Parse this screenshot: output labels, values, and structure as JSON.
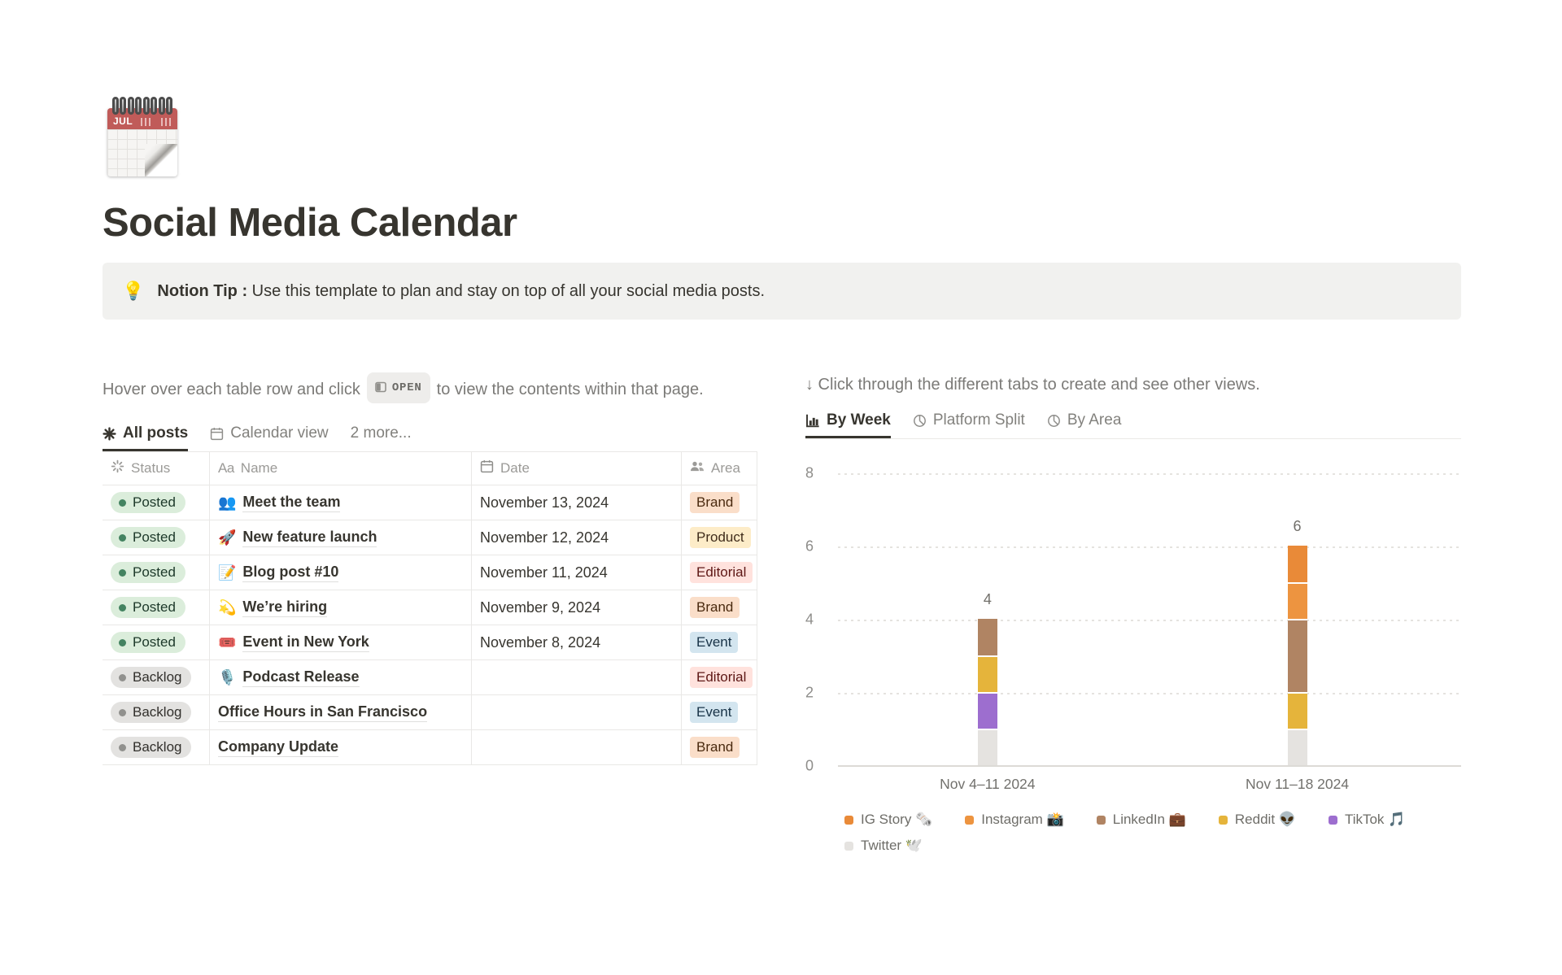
{
  "page": {
    "title": "Social Media Calendar",
    "icon_month": "JUL"
  },
  "callout": {
    "emoji": "💡",
    "bold": "Notion Tip :",
    "text": " Use this template to plan and stay on top of all your social media posts."
  },
  "left": {
    "instr_before": "Hover over each table row and click",
    "open_label": "OPEN",
    "instr_after": "to view the contents within that page.",
    "tabs": [
      {
        "label": "All posts",
        "icon": "asterisk-icon",
        "active": true
      },
      {
        "label": "Calendar view",
        "icon": "calendar-icon",
        "active": false
      },
      {
        "label": "2 more...",
        "icon": "",
        "active": false
      }
    ]
  },
  "table": {
    "headers": [
      {
        "label": "Status",
        "icon": "status-spinner-icon"
      },
      {
        "label": "Name",
        "icon": "aa-icon"
      },
      {
        "label": "Date",
        "icon": "calendar-icon"
      },
      {
        "label": "Area",
        "icon": "people-icon"
      }
    ],
    "rows": [
      {
        "status": "Posted",
        "icon": "👥",
        "name": "Meet the team",
        "date": "November 13, 2024",
        "area": "Brand"
      },
      {
        "status": "Posted",
        "icon": "🚀",
        "name": "New feature launch",
        "date": "November 12, 2024",
        "area": "Product"
      },
      {
        "status": "Posted",
        "icon": "📝",
        "name": "Blog post #10",
        "date": "November 11, 2024",
        "area": "Editorial"
      },
      {
        "status": "Posted",
        "icon": "💫",
        "name": "We’re hiring",
        "date": "November 9, 2024",
        "area": "Brand"
      },
      {
        "status": "Posted",
        "icon": "🎟️",
        "name": "Event in New York",
        "date": "November 8, 2024",
        "area": "Event"
      },
      {
        "status": "Backlog",
        "icon": "🎙️",
        "name": "Podcast Release",
        "date": "",
        "area": "Editorial"
      },
      {
        "status": "Backlog",
        "icon": "",
        "name": "Office Hours in San Francisco",
        "date": "",
        "area": "Event"
      },
      {
        "status": "Backlog",
        "icon": "",
        "name": "Company Update",
        "date": "",
        "area": "Brand"
      }
    ],
    "status_styles": {
      "Posted": {
        "bg": "#DBEDDB",
        "dot": "#448361",
        "text": "#1C3829"
      },
      "Backlog": {
        "bg": "#E3E2E0",
        "dot": "#91918E",
        "text": "#32302C"
      }
    },
    "area_styles": {
      "Brand": {
        "bg": "#FADEC9",
        "text": "#49290E"
      },
      "Product": {
        "bg": "#FDECC8",
        "text": "#402C1B"
      },
      "Editorial": {
        "bg": "#FFE2DD",
        "text": "#5D1715"
      },
      "Event": {
        "bg": "#D3E5EF",
        "text": "#183347"
      }
    }
  },
  "right": {
    "arrow": "↓",
    "instr": " Click through the different tabs to create and see other views.",
    "tabs": [
      {
        "label": "By Week",
        "icon": "bar-chart-icon",
        "active": true
      },
      {
        "label": "Platform Split",
        "icon": "pie-chart-icon",
        "active": false
      },
      {
        "label": "By Area",
        "icon": "pie-chart-icon",
        "active": false
      }
    ]
  },
  "chart_data": {
    "type": "bar",
    "stacked": true,
    "categories": [
      "Nov 4–11 2024",
      "Nov 11–18 2024"
    ],
    "series": [
      {
        "name": "IG Story",
        "emoji": "🗞️",
        "color": "#E98A38",
        "values": [
          0,
          1
        ]
      },
      {
        "name": "Instagram",
        "emoji": "📸",
        "color": "#ED9440",
        "values": [
          0,
          1
        ]
      },
      {
        "name": "LinkedIn",
        "emoji": "💼",
        "color": "#B08463",
        "values": [
          1,
          2
        ]
      },
      {
        "name": "Reddit",
        "emoji": "👽",
        "color": "#E5B43B",
        "values": [
          1,
          1
        ]
      },
      {
        "name": "TikTok",
        "emoji": "🎵",
        "color": "#9D6ECF",
        "values": [
          1,
          0
        ]
      },
      {
        "name": "Twitter",
        "emoji": "🕊️",
        "color": "#E5E3E0",
        "values": [
          1,
          1
        ]
      }
    ],
    "totals": [
      4,
      6
    ],
    "yticks": [
      0,
      2,
      4,
      6,
      8
    ],
    "ylim": [
      0,
      8
    ],
    "grid": "dotted-horizontal",
    "legend_position": "bottom",
    "legend_rows": [
      5,
      1
    ]
  }
}
